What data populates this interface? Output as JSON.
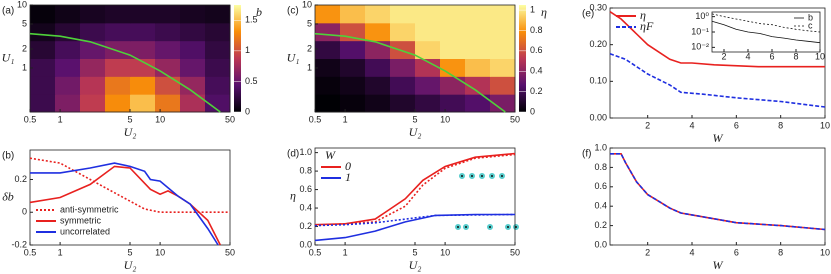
{
  "chart_data": [
    {
      "type": "heatmap",
      "panel": "(a)",
      "xlabel": "U₂",
      "ylabel": "U₁",
      "xscale": "log",
      "yscale": "log",
      "xlim": [
        0.5,
        50
      ],
      "ylim": [
        0.2,
        10
      ],
      "xticks": [
        0.5,
        1,
        5,
        10,
        50
      ],
      "yticks": [
        1,
        2,
        5,
        10
      ],
      "colormap": "inferno",
      "clim": [
        0,
        1.75
      ],
      "cticks": [
        0,
        0.5,
        1,
        1.5
      ],
      "clabel": "b",
      "z": [
        [
          0.3,
          0.6,
          0.9,
          1.3,
          1.5,
          1.2,
          0.8,
          0.4
        ],
        [
          0.3,
          0.55,
          0.85,
          1.2,
          1.3,
          1.0,
          0.7,
          0.35
        ],
        [
          0.3,
          0.45,
          0.7,
          0.9,
          0.9,
          0.7,
          0.5,
          0.3
        ],
        [
          0.2,
          0.35,
          0.5,
          0.6,
          0.6,
          0.5,
          0.4,
          0.25
        ],
        [
          0.1,
          0.2,
          0.3,
          0.35,
          0.35,
          0.3,
          0.25,
          0.2
        ],
        [
          0.03,
          0.08,
          0.12,
          0.15,
          0.15,
          0.15,
          0.12,
          0.1
        ]
      ],
      "series": [
        {
          "color": "#4fd13a",
          "dash": "solid",
          "x": [
            0.5,
            1,
            2,
            5,
            10,
            20,
            40
          ],
          "values": [
            3.5,
            3.2,
            2.6,
            1.6,
            0.9,
            0.45,
            0.2
          ]
        }
      ]
    },
    {
      "type": "line",
      "panel": "(b)",
      "xlabel": "U₂",
      "ylabel": "δb",
      "xscale": "log",
      "xlim": [
        0.5,
        50
      ],
      "ylim": [
        -0.2,
        0.38
      ],
      "xticks": [
        0.5,
        1,
        5,
        10,
        50
      ],
      "yticks": [
        -0.2,
        0,
        0.2
      ],
      "legend": "lower left",
      "series": [
        {
          "name": "anti-symmetric",
          "color": "#e8211f",
          "dash": "dotted",
          "x": [
            0.5,
            1,
            2,
            4,
            7,
            10,
            50
          ],
          "values": [
            0.33,
            0.3,
            0.2,
            0.1,
            0.02,
            0.0,
            0.0
          ]
        },
        {
          "name": "symmetric",
          "color": "#e8211f",
          "dash": "solid",
          "x": [
            0.5,
            1,
            2,
            3.5,
            5,
            8,
            10,
            12,
            15,
            20,
            30,
            40
          ],
          "values": [
            0.06,
            0.09,
            0.17,
            0.28,
            0.27,
            0.14,
            0.11,
            0.13,
            0.1,
            0.05,
            -0.05,
            -0.2
          ]
        },
        {
          "name": "uncorrelated",
          "color": "#1f2fe0",
          "dash": "solid",
          "x": [
            0.5,
            1,
            2,
            3.5,
            5,
            7,
            8,
            10,
            15,
            20,
            30,
            38
          ],
          "values": [
            0.24,
            0.24,
            0.27,
            0.3,
            0.28,
            0.25,
            0.2,
            0.19,
            0.1,
            0.05,
            -0.1,
            -0.2
          ]
        }
      ]
    },
    {
      "type": "heatmap",
      "panel": "(c)",
      "xlabel": "U₂",
      "ylabel": "U₁",
      "xscale": "log",
      "yscale": "log",
      "xlim": [
        0.5,
        50
      ],
      "ylim": [
        0.2,
        10
      ],
      "xticks": [
        0.5,
        1,
        5,
        10,
        50
      ],
      "yticks": [
        1,
        2,
        5,
        10
      ],
      "colormap": "inferno",
      "clim": [
        0,
        1.05
      ],
      "cticks": [
        0,
        0.2,
        0.4,
        0.6,
        0.8,
        1
      ],
      "clabel": "η",
      "z": [
        [
          0.0,
          0.02,
          0.05,
          0.1,
          0.15,
          0.2,
          0.25,
          0.35
        ],
        [
          0.02,
          0.05,
          0.1,
          0.2,
          0.3,
          0.4,
          0.5,
          0.6
        ],
        [
          0.05,
          0.1,
          0.2,
          0.35,
          0.5,
          0.8,
          0.9,
          0.95
        ],
        [
          0.15,
          0.25,
          0.4,
          0.6,
          0.95,
          1.0,
          1.0,
          1.0
        ],
        [
          0.4,
          0.6,
          0.8,
          0.95,
          1.0,
          1.0,
          1.0,
          1.0
        ],
        [
          0.8,
          0.9,
          0.95,
          1.0,
          1.0,
          1.0,
          1.0,
          1.0
        ]
      ],
      "series": [
        {
          "color": "#4fd13a",
          "dash": "solid",
          "x": [
            0.5,
            1,
            2,
            5,
            10,
            20,
            40
          ],
          "values": [
            3.5,
            3.2,
            2.6,
            1.6,
            0.9,
            0.45,
            0.2
          ]
        }
      ]
    },
    {
      "type": "line",
      "panel": "(d)",
      "xlabel": "U₂",
      "ylabel": "η",
      "xscale": "log",
      "xlim": [
        0.5,
        50
      ],
      "ylim": [
        0,
        1.05
      ],
      "xticks": [
        0.5,
        1,
        5,
        10,
        50
      ],
      "yticks": [
        {
          "value": 0,
          "label": "0.0"
        },
        {
          "value": 0.2,
          "label": "0.2"
        },
        {
          "value": 0.4,
          "label": "0.4"
        },
        {
          "value": 0.6,
          "label": "0.6"
        },
        {
          "value": 0.8,
          "label": "0.8"
        },
        {
          "value": 1,
          "label": "1.0"
        }
      ],
      "legend": "upper left",
      "legend_title": "W",
      "series": [
        {
          "name": "0",
          "color": "#e8211f",
          "dash": "solid",
          "x": [
            0.5,
            1,
            2,
            4,
            6,
            10,
            20,
            50
          ],
          "values": [
            0.22,
            0.23,
            0.28,
            0.5,
            0.7,
            0.85,
            0.95,
            0.99
          ]
        },
        {
          "name": "1",
          "color": "#1f2fe0",
          "dash": "solid",
          "x": [
            0.5,
            1,
            2,
            4,
            8,
            20,
            50
          ],
          "values": [
            0.05,
            0.08,
            0.15,
            0.25,
            0.32,
            0.33,
            0.33
          ]
        },
        {
          "color": "#e8211f",
          "dash": "dotted",
          "x": [
            0.5,
            2,
            4,
            6,
            10,
            20,
            50
          ],
          "values": [
            0.21,
            0.25,
            0.42,
            0.65,
            0.83,
            0.94,
            0.98
          ]
        },
        {
          "color": "#1f2fe0",
          "dash": "dotted",
          "x": [
            0.5,
            1,
            2,
            4,
            8,
            50
          ],
          "values": [
            0.21,
            0.22,
            0.24,
            0.28,
            0.32,
            0.33
          ]
        }
      ]
    },
    {
      "type": "line",
      "panel": "(e)",
      "xlabel": "W",
      "xlim": [
        0.3,
        10
      ],
      "ylim": [
        0,
        0.3
      ],
      "xticks": [
        2,
        4,
        6,
        8,
        10
      ],
      "yticks": [
        {
          "value": 0,
          "label": "0.00"
        },
        {
          "value": 0.1,
          "label": "0.10"
        },
        {
          "value": 0.2,
          "label": "0.20"
        },
        {
          "value": 0.3,
          "label": "0.30"
        }
      ],
      "legend": "upper left",
      "series": [
        {
          "name": "η",
          "color": "#e8211f",
          "dash": "solid",
          "x": [
            0.3,
            0.8,
            2,
            3,
            3.5,
            4,
            5,
            7,
            10
          ],
          "values": [
            0.29,
            0.27,
            0.2,
            0.16,
            0.15,
            0.15,
            0.145,
            0.14,
            0.14
          ]
        },
        {
          "name": "ηF",
          "color": "#1f2fe0",
          "dash": "dashed",
          "x": [
            0.3,
            1,
            2,
            3,
            3.5,
            4.5,
            6,
            8,
            10
          ],
          "values": [
            0.175,
            0.16,
            0.12,
            0.09,
            0.07,
            0.065,
            0.055,
            0.045,
            0.03
          ]
        }
      ],
      "inset": {
        "type": "line",
        "yscale": "log",
        "xlim": [
          1,
          10
        ],
        "ylim": [
          0.005,
          2
        ],
        "xticks": [
          2,
          4,
          6,
          8,
          10
        ],
        "yticks": [
          {
            "value": 1,
            "label": "10⁰"
          },
          {
            "value": 0.1,
            "label": "10⁻¹"
          },
          {
            "value": 0.01,
            "label": "10⁻²"
          }
        ],
        "legend": "upper right",
        "series": [
          {
            "name": "b",
            "color": "#111",
            "dash": "solid",
            "x": [
              1,
              2,
              3,
              4,
              5,
              6,
              7,
              8,
              9,
              10
            ],
            "values": [
              0.5,
              0.3,
              0.15,
              0.1,
              0.08,
              0.05,
              0.04,
              0.03,
              0.025,
              0.02
            ]
          },
          {
            "name": "c",
            "color": "#111",
            "dash": "dotted",
            "x": [
              1,
              2,
              3,
              4,
              5,
              6,
              7,
              8,
              9,
              10
            ],
            "values": [
              1.5,
              1.0,
              0.7,
              0.5,
              0.35,
              0.3,
              0.2,
              0.15,
              0.12,
              0.1
            ]
          }
        ]
      }
    },
    {
      "type": "line",
      "panel": "(f)",
      "xlabel": "W",
      "xlim": [
        0.3,
        10
      ],
      "ylim": [
        0,
        1
      ],
      "xticks": [
        2,
        4,
        6,
        8,
        10
      ],
      "yticks": [
        {
          "value": 0,
          "label": "0.0"
        },
        {
          "value": 0.2,
          "label": "0.2"
        },
        {
          "value": 0.4,
          "label": "0.4"
        },
        {
          "value": 0.6,
          "label": "0.6"
        },
        {
          "value": 0.8,
          "label": "0.8"
        },
        {
          "value": 1,
          "label": "1.0"
        }
      ],
      "series": [
        {
          "color": "#e8211f",
          "dash": "solid",
          "x": [
            0.3,
            0.8,
            1,
            1.5,
            2,
            2.5,
            3,
            3.5,
            4,
            5,
            6,
            8,
            10
          ],
          "values": [
            0.94,
            0.94,
            0.85,
            0.65,
            0.52,
            0.45,
            0.38,
            0.33,
            0.31,
            0.27,
            0.23,
            0.2,
            0.16
          ]
        },
        {
          "color": "#1f2fe0",
          "dash": "dashed",
          "x": [
            0.3,
            0.8,
            1,
            1.5,
            2,
            2.5,
            3,
            3.5,
            4,
            5,
            6,
            8,
            10
          ],
          "values": [
            0.94,
            0.94,
            0.85,
            0.65,
            0.52,
            0.45,
            0.38,
            0.33,
            0.31,
            0.27,
            0.23,
            0.2,
            0.16
          ]
        }
      ]
    }
  ]
}
